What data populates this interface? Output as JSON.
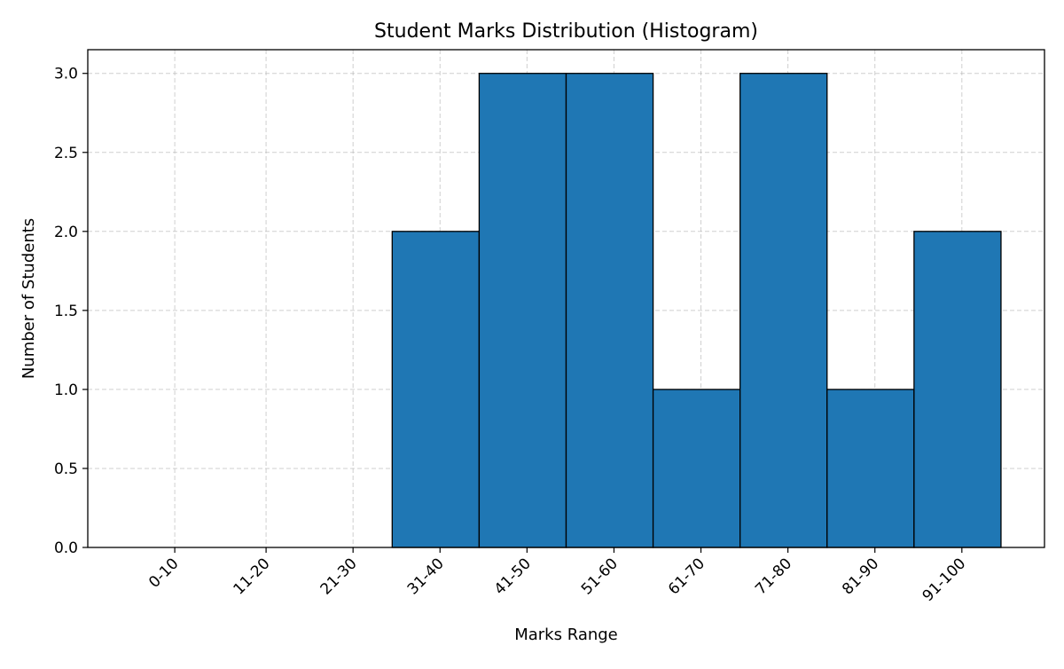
{
  "chart_data": {
    "type": "bar",
    "title": "Student Marks Distribution (Histogram)",
    "xlabel": "Marks Range",
    "ylabel": "Number of Students",
    "categories": [
      "0-10",
      "11-20",
      "21-30",
      "31-40",
      "41-50",
      "51-60",
      "61-70",
      "71-80",
      "81-90",
      "91-100"
    ],
    "bins": [
      {
        "start": 0,
        "end": 10,
        "value": 0
      },
      {
        "start": 10,
        "end": 20,
        "value": 0
      },
      {
        "start": 20,
        "end": 30,
        "value": 0
      },
      {
        "start": 30,
        "end": 40,
        "value": 2
      },
      {
        "start": 40,
        "end": 50,
        "value": 3
      },
      {
        "start": 50,
        "end": 60,
        "value": 3
      },
      {
        "start": 60,
        "end": 70,
        "value": 1
      },
      {
        "start": 70,
        "end": 80,
        "value": 3
      },
      {
        "start": 80,
        "end": 90,
        "value": 1
      },
      {
        "start": 90,
        "end": 100,
        "value": 2
      }
    ],
    "xtick_positions": [
      5,
      15.5,
      25.5,
      35.5,
      45.5,
      55.5,
      65.5,
      75.5,
      85.5,
      95.5
    ],
    "yticks": [
      0.0,
      0.5,
      1.0,
      1.5,
      2.0,
      2.5,
      3.0
    ],
    "ytick_labels": [
      "0.0",
      "0.5",
      "1.0",
      "1.5",
      "2.0",
      "2.5",
      "3.0"
    ],
    "xlim": [
      -5,
      105
    ],
    "ylim": [
      0,
      3.15
    ],
    "grid": true,
    "colors": {
      "bar_fill": "#1f77b4",
      "bar_edge": "#000000",
      "grid": "#b0b0b0",
      "axis": "#000000",
      "background": "#ffffff"
    }
  }
}
